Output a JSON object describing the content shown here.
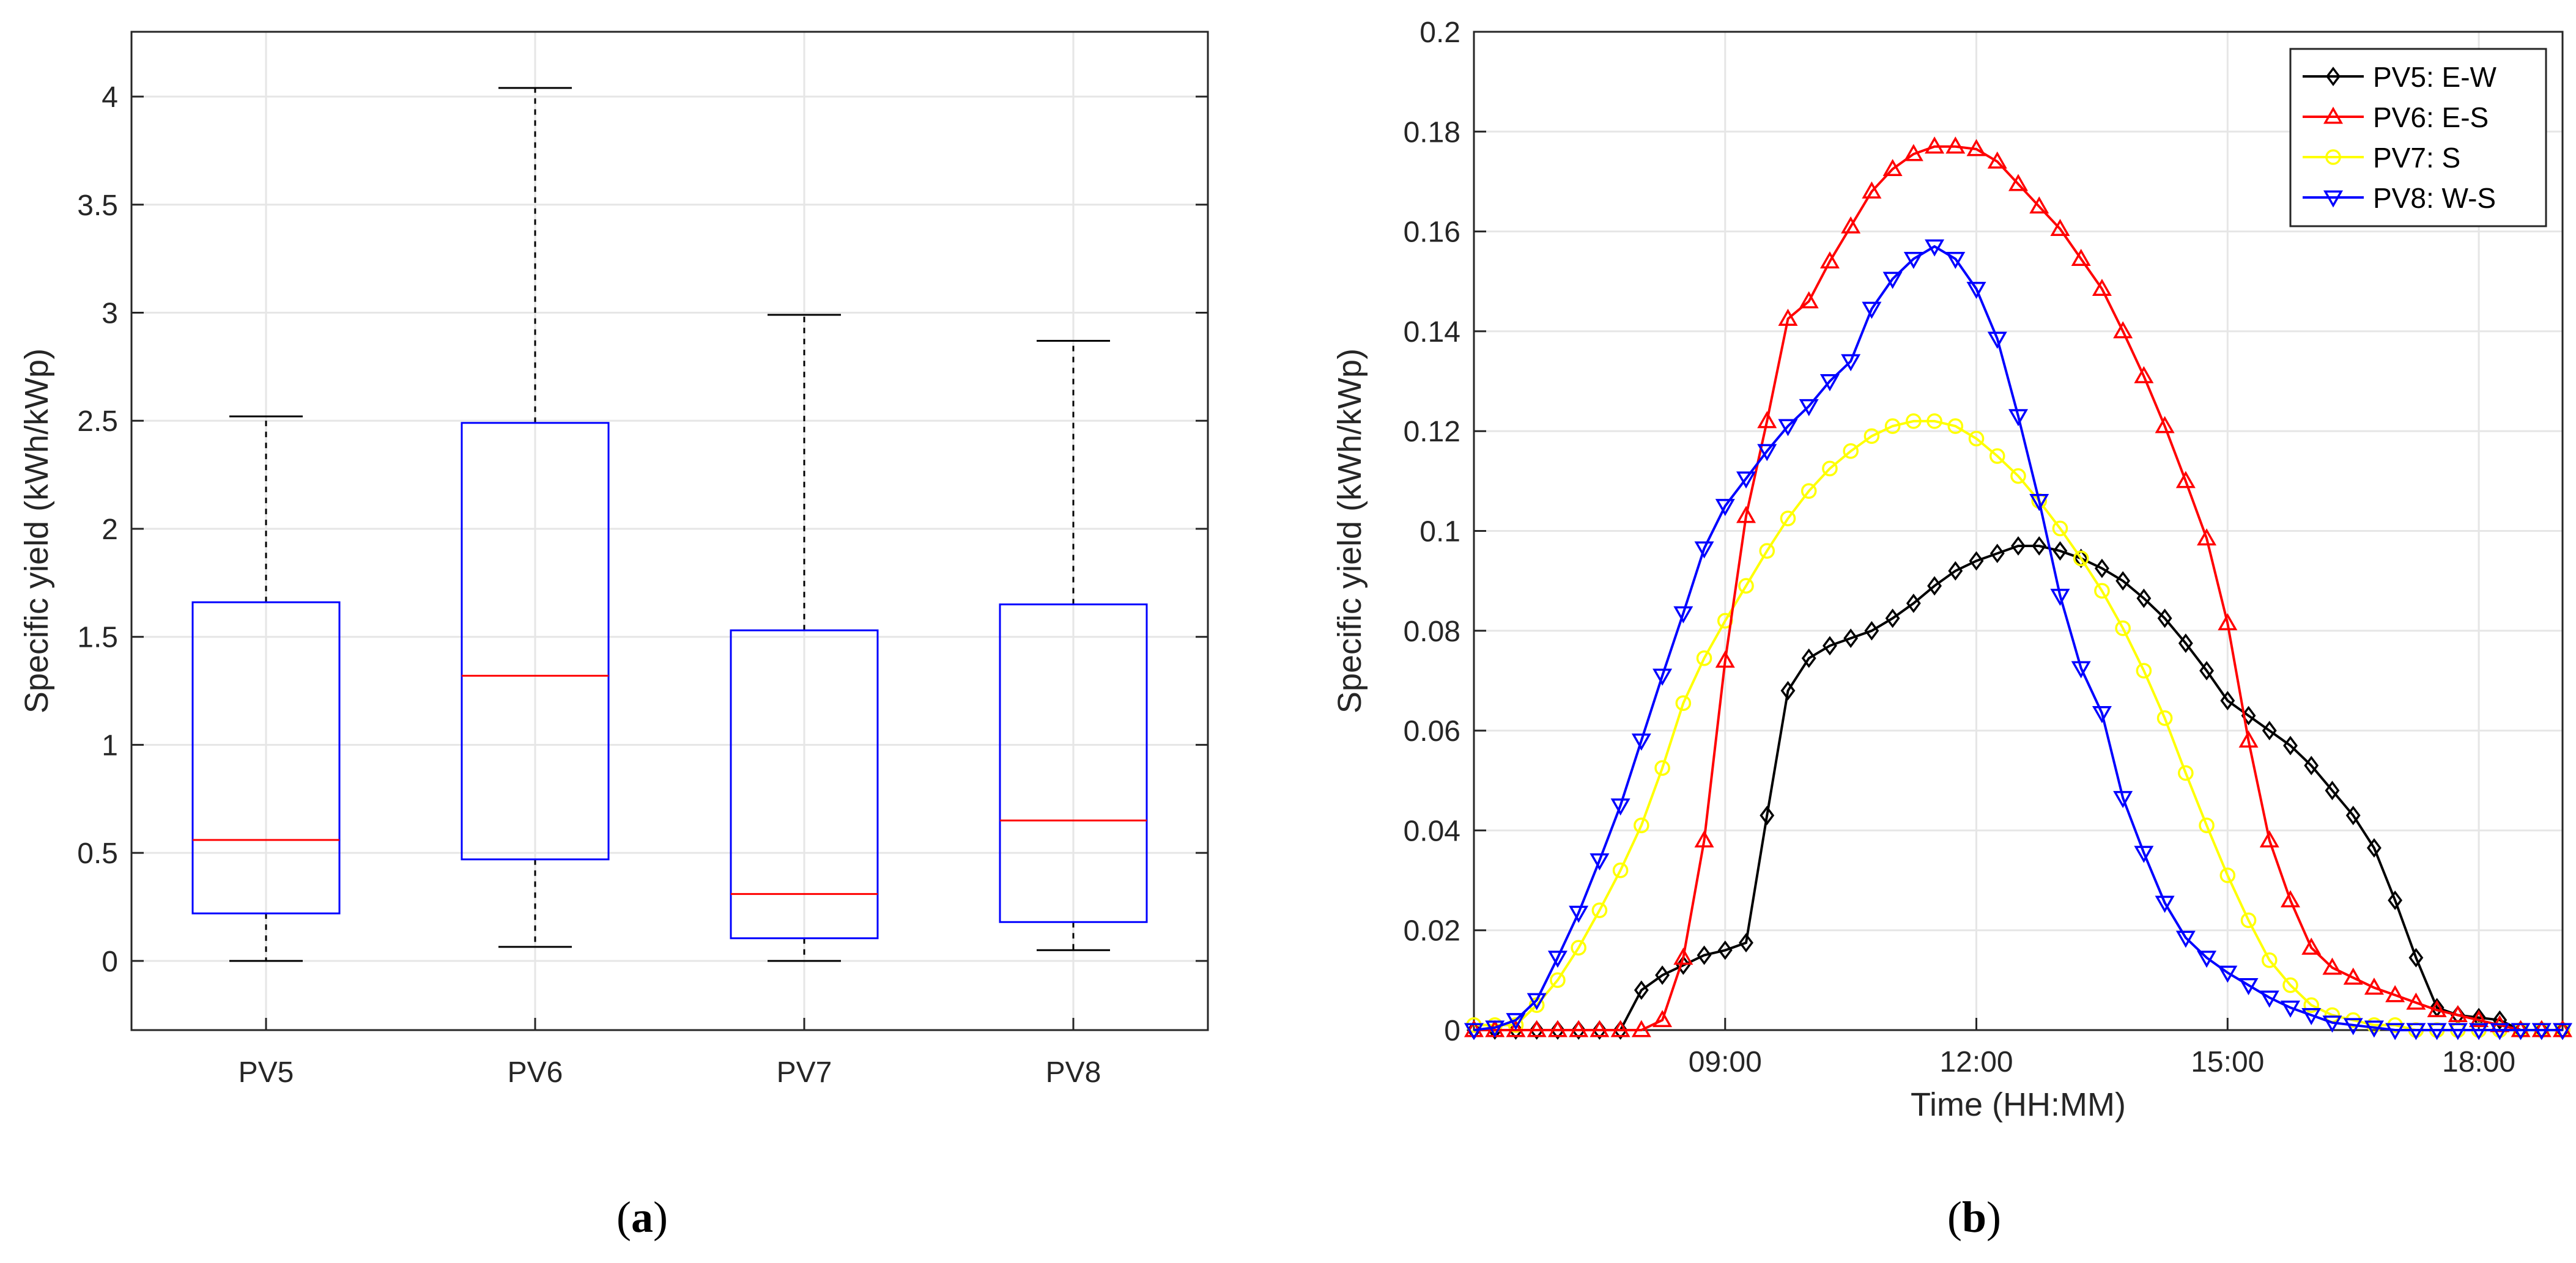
{
  "captions": [
    "(a)",
    "(b)"
  ],
  "caption_parts": [
    {
      "open": "(",
      "letter": "a",
      "close": ")"
    },
    {
      "open": "(",
      "letter": "b",
      "close": ")"
    }
  ],
  "chart_data": [
    {
      "type": "box",
      "title": "",
      "xlabel": "",
      "ylabel": "Specific yield (kWh/kWp)",
      "ylim": [
        -0.32,
        4.3
      ],
      "yticks": [
        0,
        0.5,
        1,
        1.5,
        2,
        2.5,
        3,
        3.5,
        4
      ],
      "ytick_labels": [
        "0",
        "0.5",
        "1",
        "1.5",
        "2",
        "2.5",
        "3",
        "3.5",
        "4"
      ],
      "grid": true,
      "categories": [
        "PV5",
        "PV6",
        "PV7",
        "PV8"
      ],
      "boxes": [
        {
          "name": "PV5",
          "min": 0.0,
          "q1": 0.22,
          "median": 0.56,
          "q3": 1.66,
          "max": 2.52
        },
        {
          "name": "PV6",
          "min": 0.065,
          "q1": 0.47,
          "median": 1.32,
          "q3": 2.49,
          "max": 4.04
        },
        {
          "name": "PV7",
          "min": 0.0,
          "q1": 0.105,
          "median": 0.31,
          "q3": 1.53,
          "max": 2.99
        },
        {
          "name": "PV8",
          "min": 0.05,
          "q1": 0.18,
          "median": 0.65,
          "q3": 1.65,
          "max": 2.87
        }
      ],
      "colors": {
        "box": "#0000ff",
        "median": "#ff0000",
        "whisker": "#000000"
      }
    },
    {
      "type": "line",
      "title": "",
      "xlabel": "Time (HH:MM)",
      "ylabel": "Specific yield (kWh/kWp)",
      "xlim": [
        6.0,
        19.0
      ],
      "ylim": [
        0,
        0.2
      ],
      "xticks": [
        9,
        12,
        15,
        18
      ],
      "xtick_labels": [
        "09:00",
        "12:00",
        "15:00",
        "18:00"
      ],
      "yticks": [
        0,
        0.02,
        0.04,
        0.06,
        0.08,
        0.1,
        0.12,
        0.14,
        0.16,
        0.18,
        0.2
      ],
      "ytick_labels": [
        "0",
        "0.02",
        "0.04",
        "0.06",
        "0.08",
        "0.1",
        "0.12",
        "0.14",
        "0.16",
        "0.18",
        "0.2"
      ],
      "grid": true,
      "legend_position": "top-right",
      "x": [
        6.0,
        6.25,
        6.5,
        6.75,
        7.0,
        7.25,
        7.5,
        7.75,
        8.0,
        8.25,
        8.5,
        8.75,
        9.0,
        9.25,
        9.5,
        9.75,
        10.0,
        10.25,
        10.5,
        10.75,
        11.0,
        11.25,
        11.5,
        11.75,
        12.0,
        12.25,
        12.5,
        12.75,
        13.0,
        13.25,
        13.5,
        13.75,
        14.0,
        14.25,
        14.5,
        14.75,
        15.0,
        15.25,
        15.5,
        15.75,
        16.0,
        16.25,
        16.5,
        16.75,
        17.0,
        17.25,
        17.5,
        17.75,
        18.0,
        18.25,
        18.5,
        18.75,
        19.0
      ],
      "series": [
        {
          "name": "PV5: E-W",
          "label": "PV5: E-W",
          "color": "#000000",
          "marker": "diamond",
          "values": [
            0.0,
            0.0,
            0.0,
            0.0,
            0.0,
            0.0,
            0.0,
            0.0,
            0.008,
            0.011,
            0.013,
            0.015,
            0.016,
            0.0175,
            0.043,
            0.068,
            0.0745,
            0.077,
            0.0785,
            0.08,
            0.0825,
            0.0855,
            0.089,
            0.092,
            0.094,
            0.0955,
            0.097,
            0.097,
            0.096,
            0.0945,
            0.0925,
            0.09,
            0.0865,
            0.0825,
            0.0775,
            0.072,
            0.066,
            0.063,
            0.06,
            0.057,
            0.053,
            0.048,
            0.043,
            0.0365,
            0.026,
            0.0145,
            0.0045,
            0.003,
            0.0025,
            0.002,
            0.0,
            0.0,
            0.0
          ]
        },
        {
          "name": "PV6: E-S",
          "label": "PV6: E-S",
          "color": "#ff0000",
          "marker": "triangle-up",
          "values": [
            0.0,
            0.0,
            0.0,
            0.0,
            0.0,
            0.0,
            0.0,
            0.0,
            0.0,
            0.002,
            0.0145,
            0.038,
            0.074,
            0.103,
            0.122,
            0.1425,
            0.146,
            0.154,
            0.161,
            0.168,
            0.1725,
            0.1755,
            0.177,
            0.177,
            0.1765,
            0.174,
            0.1695,
            0.165,
            0.1605,
            0.1545,
            0.1485,
            0.14,
            0.131,
            0.121,
            0.11,
            0.0985,
            0.0815,
            0.058,
            0.038,
            0.026,
            0.0165,
            0.0125,
            0.0105,
            0.0085,
            0.007,
            0.0055,
            0.004,
            0.003,
            0.002,
            0.001,
            0.0,
            0.0,
            0.0
          ]
        },
        {
          "name": "PV7: S",
          "label": "PV7: S",
          "color": "#ffff00",
          "marker": "circle",
          "values": [
            0.001,
            0.001,
            0.001,
            0.005,
            0.01,
            0.0165,
            0.024,
            0.032,
            0.041,
            0.0525,
            0.0655,
            0.0745,
            0.082,
            0.089,
            0.096,
            0.1025,
            0.108,
            0.1125,
            0.116,
            0.119,
            0.121,
            0.122,
            0.122,
            0.121,
            0.1185,
            0.115,
            0.111,
            0.106,
            0.1005,
            0.0945,
            0.088,
            0.0805,
            0.072,
            0.0625,
            0.0515,
            0.041,
            0.031,
            0.022,
            0.014,
            0.009,
            0.005,
            0.003,
            0.002,
            0.001,
            0.001,
            0.0,
            0.0,
            0.0,
            0.0,
            0.0,
            0.0,
            0.0,
            0.0
          ]
        },
        {
          "name": "PV8: W-S",
          "label": "PV8: W-S",
          "color": "#0000ff",
          "marker": "triangle-down",
          "values": [
            0.0,
            0.0005,
            0.002,
            0.006,
            0.0145,
            0.0235,
            0.034,
            0.045,
            0.058,
            0.071,
            0.0835,
            0.0965,
            0.105,
            0.1105,
            0.116,
            0.121,
            0.125,
            0.13,
            0.134,
            0.1445,
            0.1505,
            0.1545,
            0.157,
            0.1545,
            0.1485,
            0.1385,
            0.123,
            0.106,
            0.087,
            0.0725,
            0.0635,
            0.0465,
            0.0355,
            0.0255,
            0.0185,
            0.0145,
            0.0115,
            0.009,
            0.0065,
            0.0045,
            0.003,
            0.0015,
            0.001,
            0.0005,
            0.0,
            0.0,
            0.0,
            0.0,
            0.0,
            0.0,
            0.0,
            0.0,
            0.0
          ]
        }
      ]
    }
  ]
}
